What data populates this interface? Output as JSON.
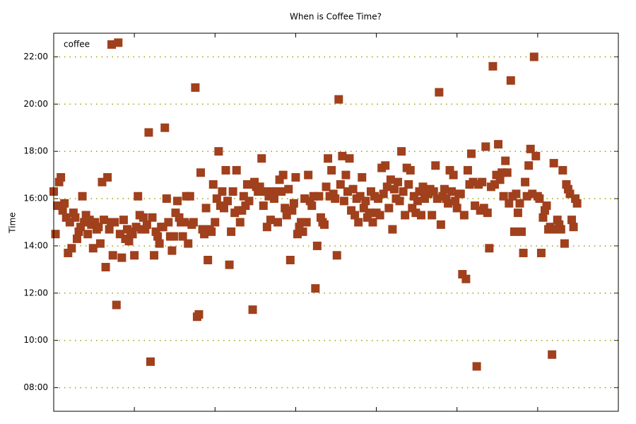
{
  "chart_data": {
    "type": "scatter",
    "title": "When is Coffee Time?",
    "y_label": "Time",
    "legend": "top left",
    "grid": true,
    "xlim": [
      0,
      315
    ],
    "xticks": [
      45,
      90,
      135,
      180,
      225,
      270
    ],
    "ylim": [
      7,
      23
    ],
    "yticks": [
      {
        "value": 8,
        "label": "08:00"
      },
      {
        "value": 10,
        "label": "10:00"
      },
      {
        "value": 12,
        "label": "12:00"
      },
      {
        "value": 14,
        "label": "14:00"
      },
      {
        "value": 16,
        "label": "16:00"
      },
      {
        "value": 18,
        "label": "18:00"
      },
      {
        "value": 20,
        "label": "20:00"
      },
      {
        "value": 22,
        "label": "22:00"
      }
    ],
    "series": [
      {
        "name": "coffee",
        "color": "#a0401c",
        "x": [
          0,
          1,
          2,
          3,
          4,
          5,
          6,
          7,
          8,
          9,
          10,
          11,
          12,
          13,
          14,
          15,
          16,
          17,
          18,
          19,
          20,
          21,
          22,
          23,
          24,
          25,
          26,
          27,
          28,
          29,
          30,
          31,
          32,
          33,
          34,
          35,
          36,
          37,
          38,
          39,
          40,
          41,
          42,
          43,
          44,
          45,
          46,
          47,
          48,
          49,
          50,
          51,
          52,
          53,
          54,
          55,
          56,
          57,
          58,
          59,
          60,
          61,
          62,
          63,
          64,
          65,
          66,
          67,
          68,
          69,
          70,
          71,
          72,
          73,
          74,
          75,
          76,
          77,
          78,
          79,
          80,
          81,
          82,
          83,
          84,
          85,
          86,
          87,
          88,
          89,
          90,
          91,
          92,
          93,
          94,
          95,
          96,
          97,
          98,
          99,
          100,
          101,
          102,
          103,
          104,
          105,
          106,
          107,
          108,
          109,
          110,
          111,
          112,
          113,
          114,
          115,
          116,
          117,
          118,
          119,
          120,
          121,
          122,
          123,
          124,
          125,
          126,
          127,
          128,
          129,
          130,
          131,
          132,
          133,
          134,
          135,
          136,
          137,
          138,
          139,
          140,
          141,
          142,
          143,
          144,
          145,
          146,
          147,
          148,
          149,
          150,
          151,
          152,
          153,
          154,
          155,
          156,
          157,
          158,
          159,
          160,
          161,
          162,
          163,
          164,
          165,
          166,
          167,
          168,
          169,
          170,
          171,
          172,
          173,
          174,
          175,
          176,
          177,
          178,
          179,
          180,
          181,
          182,
          183,
          184,
          185,
          186,
          187,
          188,
          189,
          190,
          191,
          192,
          193,
          194,
          195,
          196,
          197,
          198,
          199,
          200,
          201,
          202,
          203,
          204,
          205,
          206,
          207,
          208,
          209,
          210,
          211,
          212,
          213,
          214,
          215,
          216,
          217,
          218,
          219,
          220,
          221,
          222,
          223,
          224,
          225,
          226,
          227,
          228,
          229,
          230,
          231,
          232,
          233,
          234,
          235,
          236,
          237,
          238,
          239,
          240,
          241,
          242,
          243,
          244,
          245,
          246,
          247,
          248,
          249,
          250,
          251,
          252,
          253,
          254,
          255,
          256,
          257,
          258,
          259,
          260,
          261,
          262,
          263,
          264,
          265,
          266,
          267,
          268,
          269,
          270,
          271,
          272,
          273,
          274,
          275,
          276,
          277,
          278,
          279,
          280,
          281,
          282,
          283,
          284,
          285,
          286,
          287,
          288,
          289,
          290,
          291,
          292
        ],
        "values": [
          16.3,
          14.5,
          15.7,
          16.7,
          16.9,
          15.5,
          15.8,
          15.2,
          13.7,
          15,
          13.9,
          15.4,
          15.2,
          14.3,
          14.6,
          14.8,
          16.1,
          15,
          15.3,
          14.5,
          15.1,
          14.9,
          13.9,
          15,
          14.7,
          14.8,
          14.1,
          16.7,
          15.1,
          13.1,
          16.9,
          14.7,
          15.0,
          13.6,
          15.0,
          11.5,
          22.6,
          14.5,
          13.5,
          15.1,
          14.3,
          14.7,
          14.2,
          14.6,
          14.5,
          13.6,
          14.8,
          16.1,
          15.3,
          14.7,
          15.2,
          14.7,
          14.9,
          18.8,
          9.1,
          15.2,
          13.6,
          14.6,
          14.4,
          14.1,
          14.8,
          14.8,
          19.0,
          16.0,
          15.0,
          14.4,
          13.8,
          14.4,
          15.4,
          15.9,
          15.2,
          15.0,
          14.4,
          15.0,
          16.1,
          14.1,
          16.1,
          14.9,
          15.0,
          20.7,
          11.0,
          11.1,
          17.1,
          14.7,
          14.5,
          15.6,
          13.4,
          14.7,
          14.6,
          16.6,
          15.0,
          16.0,
          18.0,
          15.7,
          16.3,
          15.6,
          17.2,
          15.9,
          13.2,
          14.6,
          16.3,
          15.4,
          17.2,
          15.5,
          15.0,
          15.5,
          16.1,
          15.7,
          16.6,
          15.9,
          16.6,
          11.3,
          16.7,
          16.5,
          16.3,
          16.5,
          17.7,
          15.7,
          16.3,
          14.8,
          16.1,
          15.1,
          16.3,
          16.0,
          16.3,
          15.0,
          16.8,
          16.3,
          17.0,
          15.6,
          15.3,
          16.4,
          13.4,
          15.5,
          15.8,
          16.9,
          14.5,
          14.8,
          15.0,
          14.6,
          16.0,
          15.0,
          17.0,
          15.9,
          15.7,
          16.1,
          12.2,
          14.0,
          16.1,
          15.2,
          15.0,
          14.9,
          16.5,
          17.7,
          16.1,
          17.2,
          16.2,
          16.0,
          13.6,
          20.2,
          16.6,
          17.8,
          15.9,
          17.0,
          16.3,
          17.7,
          15.5,
          16.4,
          15.3,
          16.0,
          15.0,
          16.1,
          16.9,
          15.6,
          15.9,
          15.2,
          15.4,
          16.3,
          15.0,
          16.1,
          15.4,
          16.0,
          15.3,
          17.3,
          16.2,
          17.4,
          16.5,
          15.6,
          16.8,
          14.7,
          16.4,
          16.0,
          16.7,
          15.9,
          18.0,
          16.3,
          15.3,
          17.3,
          16.6,
          17.2,
          15.6,
          16.1,
          15.4,
          15.9,
          16.3,
          15.3,
          16.5,
          16.0,
          16.3,
          16.2,
          16.4,
          15.3,
          16.3,
          17.4,
          16.0,
          20.5,
          14.9,
          16.1,
          16.4,
          16.0,
          15.8,
          17.2,
          16.3,
          17.0,
          15.9,
          15.6,
          16.2,
          16.2,
          12.8,
          15.3,
          12.6,
          17.2,
          16.6,
          17.9,
          16.7,
          15.7,
          8.9,
          16.6,
          15.5,
          16.7,
          15.6,
          18.2,
          15.4,
          13.9,
          16.5,
          21.6,
          16.6,
          17.0,
          18.3,
          16.8,
          17.1,
          16.1,
          17.6,
          17.1,
          15.8,
          21.0,
          16.1,
          14.6,
          16.2,
          15.4,
          15.8,
          14.6,
          13.7,
          16.7,
          16.1,
          17.4,
          18.1,
          16.2,
          22.0,
          17.8,
          16.1,
          16.0,
          13.7,
          15.2,
          15.5,
          15.7,
          14.7,
          14.8,
          9.4,
          17.5,
          14.7,
          15.1,
          14.9,
          14.7,
          17.2,
          14.1,
          16.6,
          16.4,
          16.2,
          15.1,
          14.8,
          16.0,
          15.8
        ]
      }
    ]
  }
}
